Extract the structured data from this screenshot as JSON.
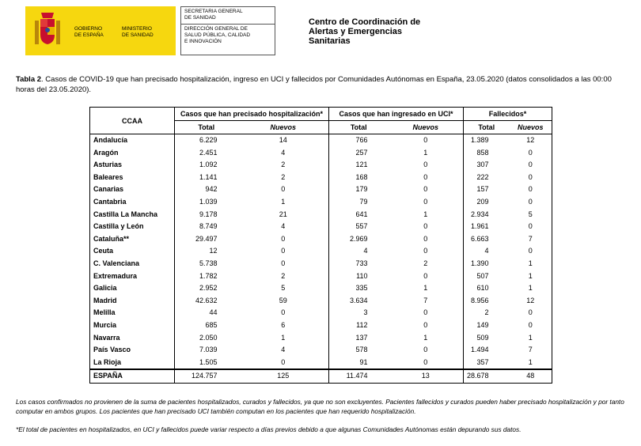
{
  "header": {
    "gobierno": "GOBIERNO\nDE ESPAÑA",
    "ministerio": "MINISTERIO\nDE SANIDAD",
    "secretaria": "SECRETARIA GENERAL\nDE SANIDAD",
    "direccion": "DIRECCIÓN GENERAL DE\nSALUD PÚBLICA, CALIDAD\nE INNOVACIÓN",
    "centro": "Centro de Coordinación de\nAlertas y Emergencias\nSanitarias"
  },
  "caption": {
    "label": "Tabla 2",
    "text": ". Casos de COVID-19 que han precisado hospitalización, ingreso en UCI y fallecidos por Comunidades Autónomas en España, 23.05.2020 (datos consolidados a las 00:00 horas del 23.05.2020)."
  },
  "table": {
    "ccaa": "CCAA",
    "groups": [
      "Casos que han precisado hospitalización*",
      "Casos que han ingresado en UCI*",
      "Fallecidos*"
    ],
    "subheaders": [
      "Total",
      "Nuevos",
      "Total",
      "Nuevos",
      "Total",
      "Nuevos"
    ],
    "rows": [
      [
        "Andalucía",
        "6.229",
        "14",
        "766",
        "0",
        "1.389",
        "12"
      ],
      [
        "Aragón",
        "2.451",
        "4",
        "257",
        "1",
        "858",
        "0"
      ],
      [
        "Asturias",
        "1.092",
        "2",
        "121",
        "0",
        "307",
        "0"
      ],
      [
        "Baleares",
        "1.141",
        "2",
        "168",
        "0",
        "222",
        "0"
      ],
      [
        "Canarias",
        "942",
        "0",
        "179",
        "0",
        "157",
        "0"
      ],
      [
        "Cantabria",
        "1.039",
        "1",
        "79",
        "0",
        "209",
        "0"
      ],
      [
        "Castilla La Mancha",
        "9.178",
        "21",
        "641",
        "1",
        "2.934",
        "5"
      ],
      [
        "Castilla y León",
        "8.749",
        "4",
        "557",
        "0",
        "1.961",
        "0"
      ],
      [
        "Cataluña**",
        "29.497",
        "0",
        "2.969",
        "0",
        "6.663",
        "7"
      ],
      [
        "Ceuta",
        "12",
        "0",
        "4",
        "0",
        "4",
        "0"
      ],
      [
        "C. Valenciana",
        "5.738",
        "0",
        "733",
        "2",
        "1.390",
        "1"
      ],
      [
        "Extremadura",
        "1.782",
        "2",
        "110",
        "0",
        "507",
        "1"
      ],
      [
        "Galicia",
        "2.952",
        "5",
        "335",
        "1",
        "610",
        "1"
      ],
      [
        "Madrid",
        "42.632",
        "59",
        "3.634",
        "7",
        "8.956",
        "12"
      ],
      [
        "Melilla",
        "44",
        "0",
        "3",
        "0",
        "2",
        "0"
      ],
      [
        "Murcia",
        "685",
        "6",
        "112",
        "0",
        "149",
        "0"
      ],
      [
        "Navarra",
        "2.050",
        "1",
        "137",
        "1",
        "509",
        "1"
      ],
      [
        "País Vasco",
        "7.039",
        "4",
        "578",
        "0",
        "1.494",
        "7"
      ],
      [
        "La Rioja",
        "1.505",
        "0",
        "91",
        "0",
        "357",
        "1"
      ]
    ],
    "total": [
      "ESPAÑA",
      "124.757",
      "125",
      "11.474",
      "13",
      "28.678",
      "48"
    ]
  },
  "notes": [
    "Los casos confirmados no provienen de la suma de pacientes hospitalizados, curados y fallecidos, ya que no son excluyentes. Pacientes fallecidos y curados pueden haber precisado hospitalización y por tanto computar en ambos grupos. Los pacientes que han precisado UCI también computan en los pacientes que han requerido hospitalización.",
    "*El total de pacientes en hospitalizados, en UCI y fallecidos puede variar respecto a días previos debido a que algunas Comunidades Autónomas están depurando sus datos."
  ]
}
